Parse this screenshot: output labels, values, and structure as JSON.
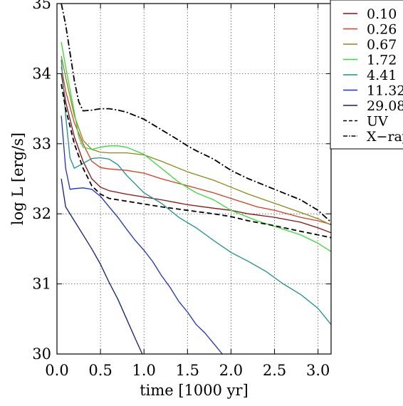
{
  "chart_data": {
    "type": "line",
    "title": "",
    "xlabel": "time [1000 yr]",
    "ylabel": "log L [erg/s]",
    "xlim": [
      0.0,
      3.15
    ],
    "ylim": [
      30.0,
      35.0
    ],
    "xticks": [
      0.0,
      0.5,
      1.0,
      1.5,
      2.0,
      2.5,
      3.0
    ],
    "xtick_labels": [
      "0.0",
      "0.5",
      "1.0",
      "1.5",
      "2.0",
      "2.5",
      "3.0"
    ],
    "yticks": [
      30,
      31,
      32,
      33,
      34,
      35
    ],
    "ytick_labels": [
      "30",
      "31",
      "32",
      "33",
      "34",
      "35"
    ],
    "grid": true,
    "legend_position": "top-right",
    "series": [
      {
        "name": "0.10",
        "color": "#8b1010",
        "dash": "solid",
        "x": [
          0.05,
          0.1,
          0.2,
          0.3,
          0.4,
          0.5,
          0.6,
          0.8,
          1.0,
          1.2,
          1.5,
          1.8,
          2.0,
          2.2,
          2.5,
          2.8,
          3.0,
          3.15
        ],
        "y": [
          34.0,
          33.6,
          33.1,
          32.75,
          32.5,
          32.38,
          32.33,
          32.28,
          32.24,
          32.2,
          32.13,
          32.08,
          32.05,
          32.0,
          31.95,
          31.88,
          31.8,
          31.73
        ]
      },
      {
        "name": "0.26",
        "color": "#e03c1e",
        "dash": "solid",
        "x": [
          0.05,
          0.1,
          0.2,
          0.3,
          0.4,
          0.5,
          0.6,
          0.8,
          1.0,
          1.2,
          1.5,
          1.8,
          2.0,
          2.3,
          2.5,
          2.8,
          3.0,
          3.15
        ],
        "y": [
          34.1,
          33.75,
          33.3,
          33.0,
          32.75,
          32.66,
          32.64,
          32.62,
          32.58,
          32.5,
          32.4,
          32.3,
          32.22,
          32.1,
          32.05,
          31.95,
          31.9,
          31.85
        ]
      },
      {
        "name": "0.67",
        "color": "#8a8a1a",
        "dash": "solid",
        "x": [
          0.05,
          0.1,
          0.2,
          0.3,
          0.4,
          0.5,
          0.6,
          0.8,
          1.0,
          1.2,
          1.5,
          1.8,
          2.0,
          2.2,
          2.5,
          2.8,
          3.0,
          3.15
        ],
        "y": [
          34.25,
          33.95,
          33.4,
          33.05,
          32.92,
          32.88,
          32.87,
          32.87,
          32.84,
          32.75,
          32.6,
          32.48,
          32.38,
          32.28,
          32.15,
          32.02,
          31.93,
          31.84
        ]
      },
      {
        "name": "1.72",
        "color": "#33dd33",
        "dash": "solid",
        "x": [
          0.05,
          0.1,
          0.2,
          0.25,
          0.3,
          0.4,
          0.5,
          0.6,
          0.7,
          0.8,
          1.0,
          1.2,
          1.4,
          1.6,
          1.8,
          2.0,
          2.3,
          2.5,
          2.8,
          3.0,
          3.15
        ],
        "y": [
          34.45,
          34.1,
          33.45,
          33.1,
          32.95,
          32.92,
          32.95,
          32.97,
          32.97,
          32.95,
          32.85,
          32.65,
          32.45,
          32.3,
          32.2,
          32.05,
          31.9,
          31.82,
          31.7,
          31.58,
          31.46
        ]
      },
      {
        "name": "4.41",
        "color": "#1a9090",
        "dash": "solid",
        "x": [
          0.05,
          0.1,
          0.15,
          0.2,
          0.3,
          0.4,
          0.5,
          0.6,
          0.7,
          0.8,
          1.0,
          1.2,
          1.4,
          1.6,
          1.8,
          2.0,
          2.2,
          2.4,
          2.6,
          2.8,
          3.0,
          3.15
        ],
        "y": [
          34.2,
          33.4,
          32.8,
          32.65,
          32.72,
          32.79,
          32.8,
          32.78,
          32.7,
          32.55,
          32.3,
          32.15,
          31.95,
          31.8,
          31.62,
          31.45,
          31.32,
          31.18,
          31.0,
          30.85,
          30.65,
          30.42
        ]
      },
      {
        "name": "11.32",
        "color": "#1a2ee0",
        "dash": "solid",
        "x": [
          0.05,
          0.1,
          0.15,
          0.2,
          0.3,
          0.4,
          0.5,
          0.6,
          0.7,
          0.8,
          0.9,
          1.0,
          1.1,
          1.2,
          1.3,
          1.4,
          1.5,
          1.6,
          1.7,
          1.8,
          1.9
        ],
        "y": [
          33.4,
          32.65,
          32.35,
          32.36,
          32.37,
          32.35,
          32.25,
          32.1,
          31.95,
          31.78,
          31.62,
          31.48,
          31.32,
          31.12,
          30.95,
          30.75,
          30.6,
          30.42,
          30.3,
          30.15,
          30.0
        ]
      },
      {
        "name": "29.08",
        "color": "#141a8c",
        "dash": "solid",
        "x": [
          0.05,
          0.1,
          0.2,
          0.3,
          0.4,
          0.5,
          0.6,
          0.7,
          0.8,
          0.9,
          0.98
        ],
        "y": [
          32.5,
          32.1,
          31.9,
          31.7,
          31.5,
          31.28,
          31.02,
          30.78,
          30.5,
          30.22,
          30.0
        ]
      },
      {
        "name": "UV",
        "color": "#000000",
        "dash": "dashed",
        "x": [
          0.05,
          0.1,
          0.2,
          0.3,
          0.4,
          0.5,
          0.6,
          0.8,
          1.0,
          1.2,
          1.5,
          1.8,
          2.0,
          2.2,
          2.5,
          2.8,
          3.0,
          3.15
        ],
        "y": [
          33.85,
          33.5,
          33.0,
          32.65,
          32.4,
          32.28,
          32.22,
          32.18,
          32.14,
          32.1,
          32.05,
          32.0,
          31.96,
          31.9,
          31.83,
          31.75,
          31.7,
          31.66
        ]
      },
      {
        "name": "X−ray",
        "color": "#000000",
        "dash": "dashdot",
        "x": [
          0.05,
          0.1,
          0.15,
          0.2,
          0.25,
          0.3,
          0.4,
          0.5,
          0.6,
          0.7,
          0.8,
          0.9,
          1.0,
          1.2,
          1.4,
          1.5,
          1.6,
          1.8,
          2.0,
          2.2,
          2.5,
          2.8,
          3.0,
          3.15
        ],
        "y": [
          35.0,
          34.7,
          34.3,
          33.9,
          33.6,
          33.47,
          33.48,
          33.5,
          33.5,
          33.48,
          33.45,
          33.4,
          33.35,
          33.2,
          33.05,
          32.97,
          32.9,
          32.78,
          32.62,
          32.5,
          32.35,
          32.2,
          32.05,
          31.88
        ]
      }
    ]
  }
}
